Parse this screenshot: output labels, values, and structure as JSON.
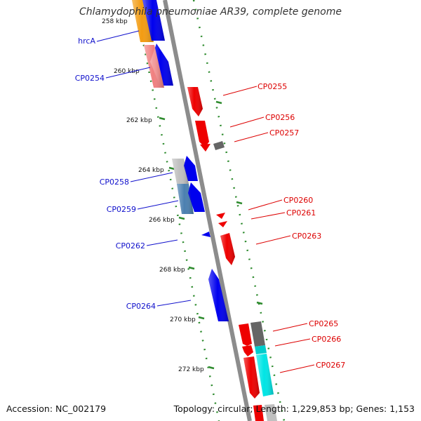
{
  "title": "Chlamydophila pneumoniae AR39, complete genome",
  "footer": {
    "accession": "Accession: NC_002179",
    "summary": "Topology: circular; Length: 1,229,853 bp; Genes: 1,153"
  },
  "colors": {
    "backbone": "#888888",
    "tick_dots": "#2e8b2e",
    "forward_label": "#1010cc",
    "reverse_label": "#dd0000",
    "gene_blue": "#0000ee",
    "gene_red": "#ee0000",
    "gene_grey": "#666666",
    "gene_orange": "#f39c12",
    "gene_pink": "#f08080",
    "gene_light_grey": "#c0c0c0",
    "gene_steel_blue": "#4a7fb0",
    "gene_cyan": "#00e5e5"
  },
  "scale_labels": [
    "258 kbp",
    "260 kbp",
    "262 kbp",
    "264 kbp",
    "266 kbp",
    "268 kbp",
    "270 kbp",
    "272 kbp"
  ],
  "labels_left": [
    {
      "name": "hrcA",
      "color": "#1010cc"
    },
    {
      "name": "CP0254",
      "color": "#1010cc"
    },
    {
      "name": "CP0258",
      "color": "#1010cc"
    },
    {
      "name": "CP0259",
      "color": "#1010cc"
    },
    {
      "name": "CP0262",
      "color": "#1010cc"
    },
    {
      "name": "CP0264",
      "color": "#1010cc"
    }
  ],
  "labels_right": [
    {
      "name": "CP0255",
      "color": "#dd0000"
    },
    {
      "name": "CP0256",
      "color": "#dd0000"
    },
    {
      "name": "CP0257",
      "color": "#dd0000"
    },
    {
      "name": "CP0260",
      "color": "#dd0000"
    },
    {
      "name": "CP0261",
      "color": "#dd0000"
    },
    {
      "name": "CP0263",
      "color": "#dd0000"
    },
    {
      "name": "CP0265",
      "color": "#dd0000"
    },
    {
      "name": "CP0266",
      "color": "#dd0000"
    },
    {
      "name": "CP0267",
      "color": "#dd0000"
    }
  ]
}
